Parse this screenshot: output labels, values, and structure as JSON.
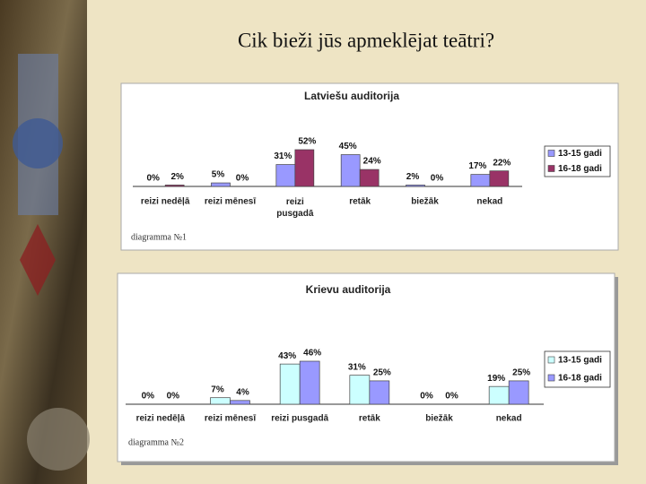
{
  "slide_title": "Cik bieži jūs apmeklējat teātri?",
  "chart_data": [
    {
      "type": "bar",
      "title": "Latviešu auditorija",
      "categories": [
        "reizi nedēļā",
        "reizi mēnesī",
        "reizi pusgadā",
        "retāk",
        "biežāk",
        "nekad"
      ],
      "series": [
        {
          "name": "13-15 gadi",
          "color": "#9999ff",
          "values": [
            0,
            5,
            31,
            45,
            2,
            17
          ],
          "value_labels": [
            "0%",
            "5%",
            "31%",
            "45%",
            "2%",
            "17%"
          ]
        },
        {
          "name": "16-18 gadi",
          "color": "#993366",
          "values": [
            2,
            0,
            52,
            24,
            0,
            22
          ],
          "value_labels": [
            "2%",
            "0%",
            "52%",
            "24%",
            "0%",
            "22%"
          ]
        }
      ],
      "legend": "right",
      "annotation": "diagramma №1"
    },
    {
      "type": "bar",
      "title": "Krievu auditorija",
      "categories": [
        "reizi nedēļā",
        "reizi mēnesī",
        "reizi pusgadā",
        "retāk",
        "biežāk",
        "nekad"
      ],
      "series": [
        {
          "name": "13-15 gadi",
          "color": "#ccffff",
          "values": [
            0,
            7,
            43,
            31,
            0,
            19
          ],
          "value_labels": [
            "0%",
            "7%",
            "43%",
            "31%",
            "0%",
            "19%"
          ]
        },
        {
          "name": "16-18 gadi",
          "color": "#9999ff",
          "values": [
            0,
            4,
            46,
            25,
            0,
            25
          ],
          "value_labels": [
            "0%",
            "4%",
            "46%",
            "25%",
            "0%",
            "25%"
          ]
        }
      ],
      "legend": "right",
      "annotation": "diagramma №2"
    }
  ]
}
